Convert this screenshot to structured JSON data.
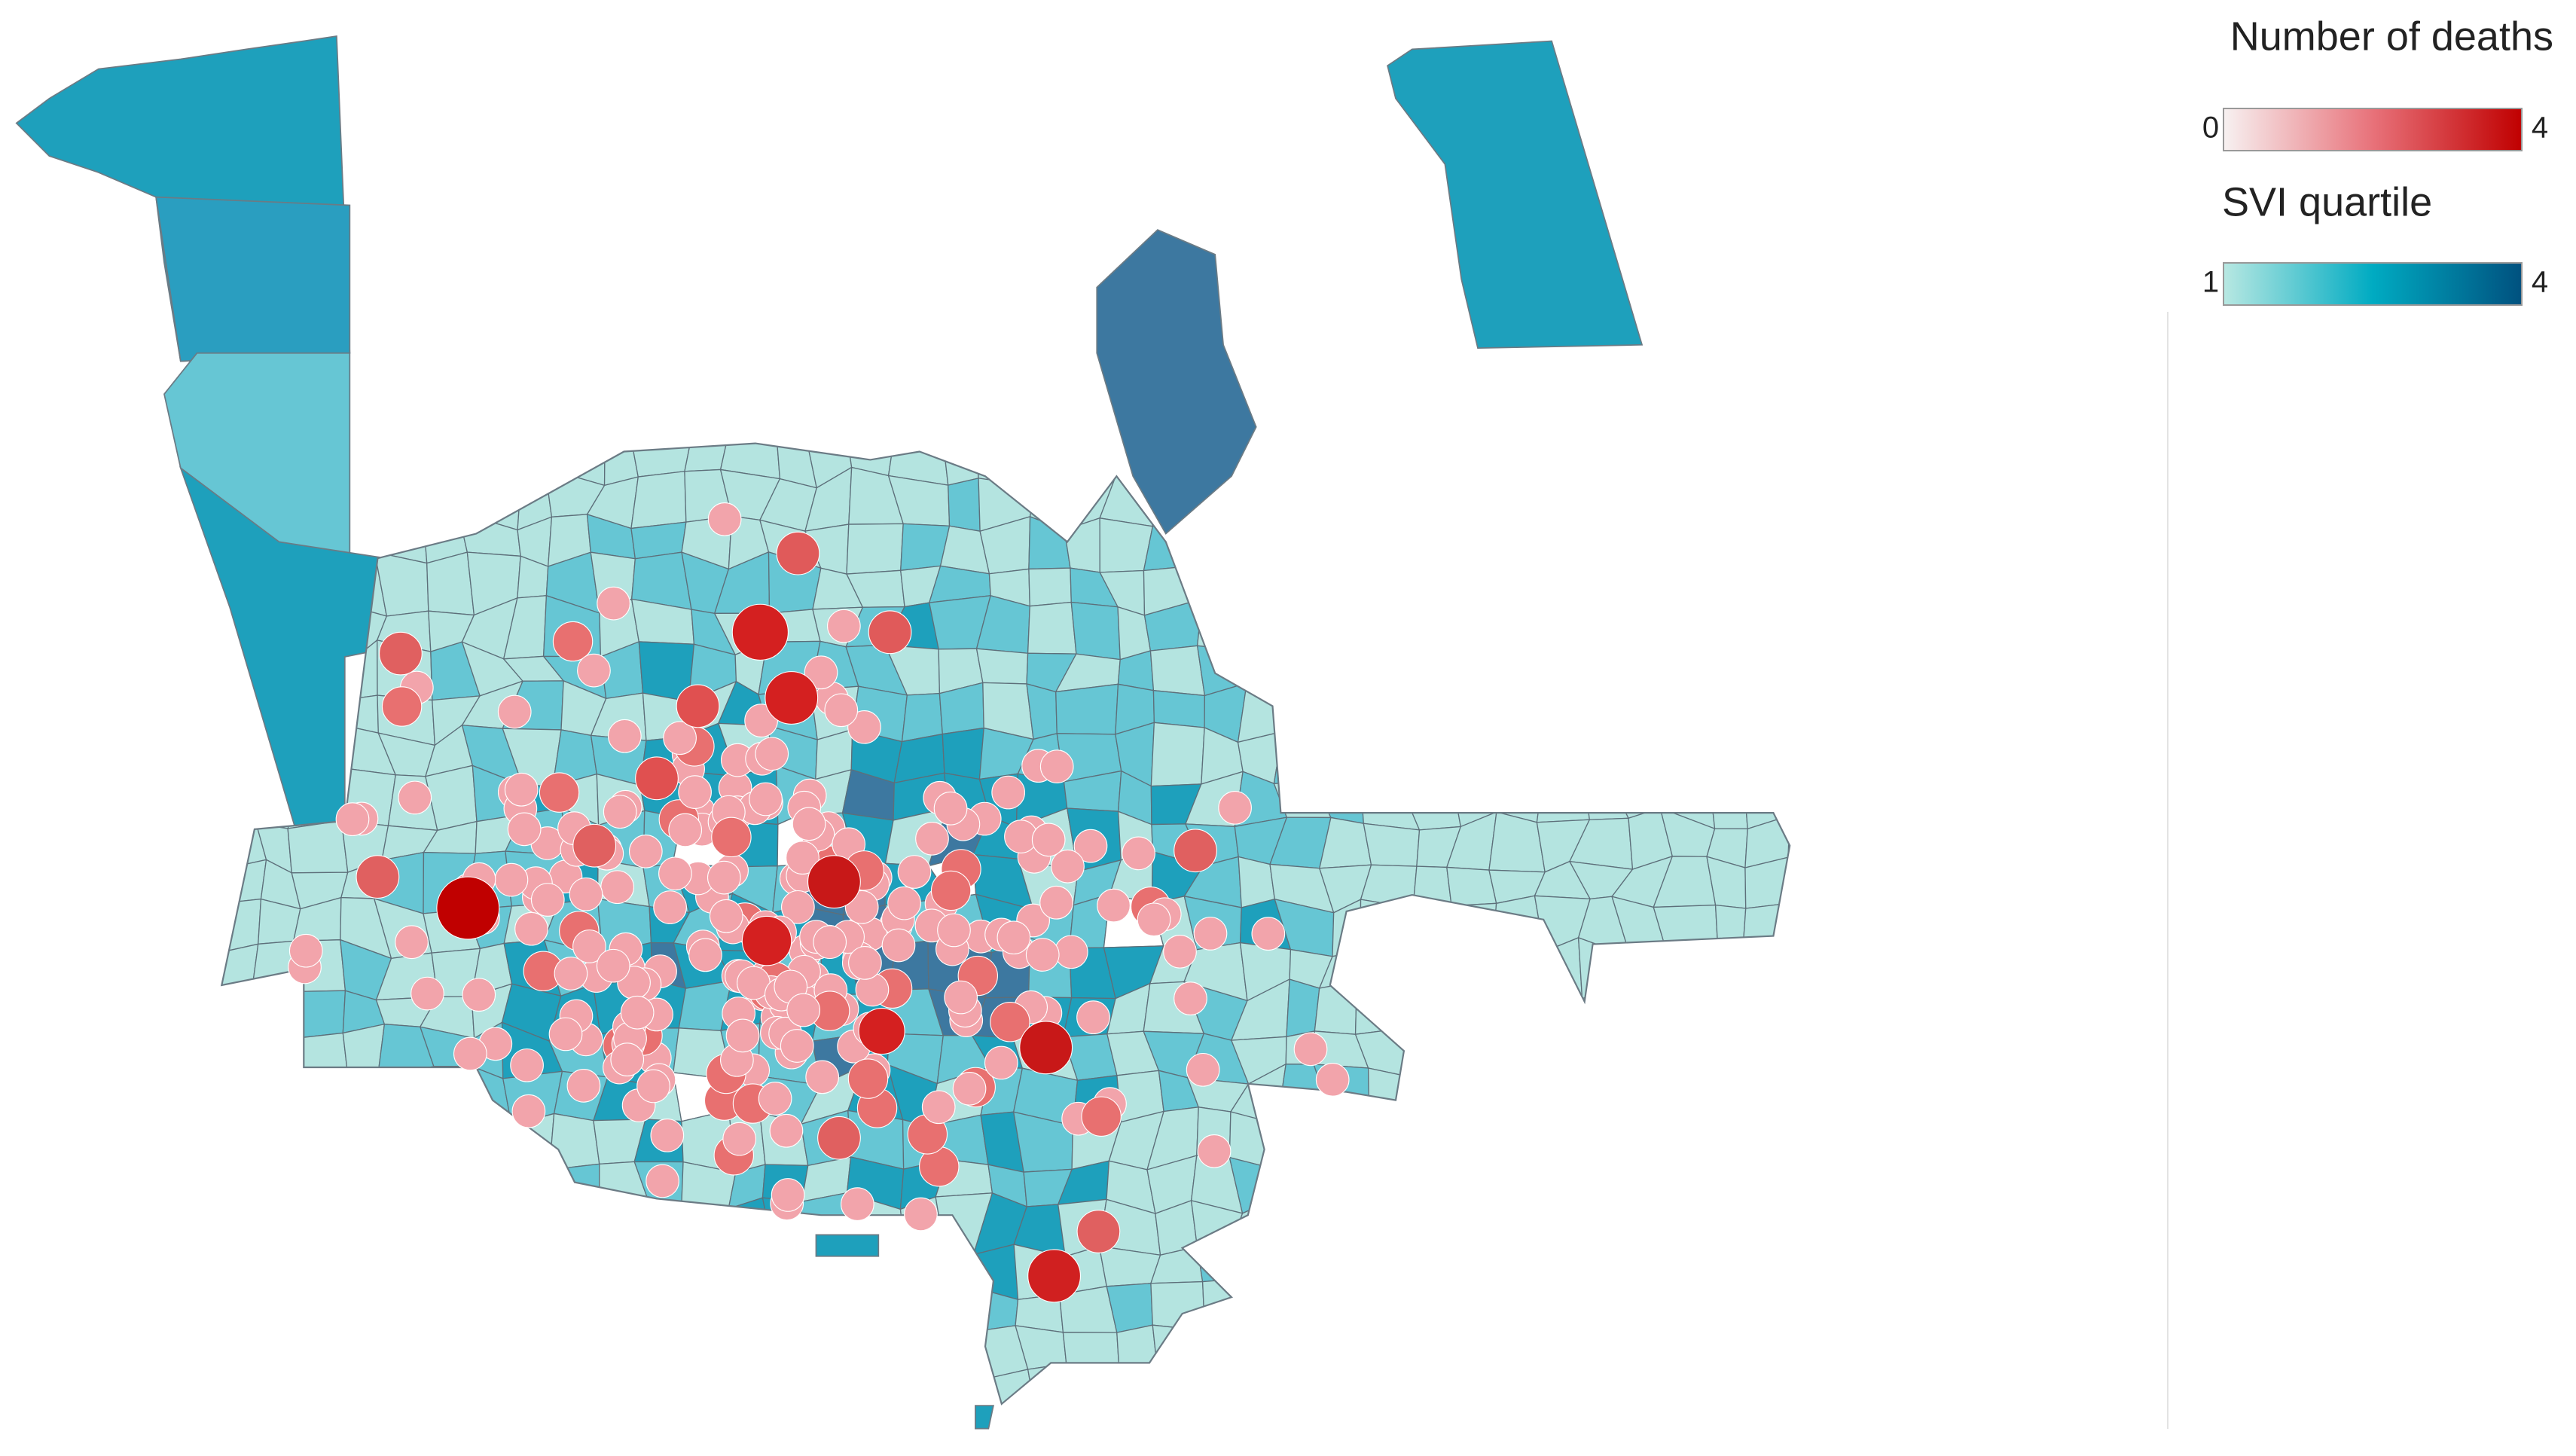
{
  "legend": {
    "deaths": {
      "title": "Number of deaths",
      "min": 0,
      "max": 4,
      "colors": [
        "#f7f1f1",
        "#e8727a",
        "#c00000"
      ]
    },
    "svi": {
      "title": "SVI quartile",
      "min": 1,
      "max": 4,
      "colors": [
        "#b8e8e2",
        "#00abc2",
        "#00517f"
      ]
    }
  }
}
